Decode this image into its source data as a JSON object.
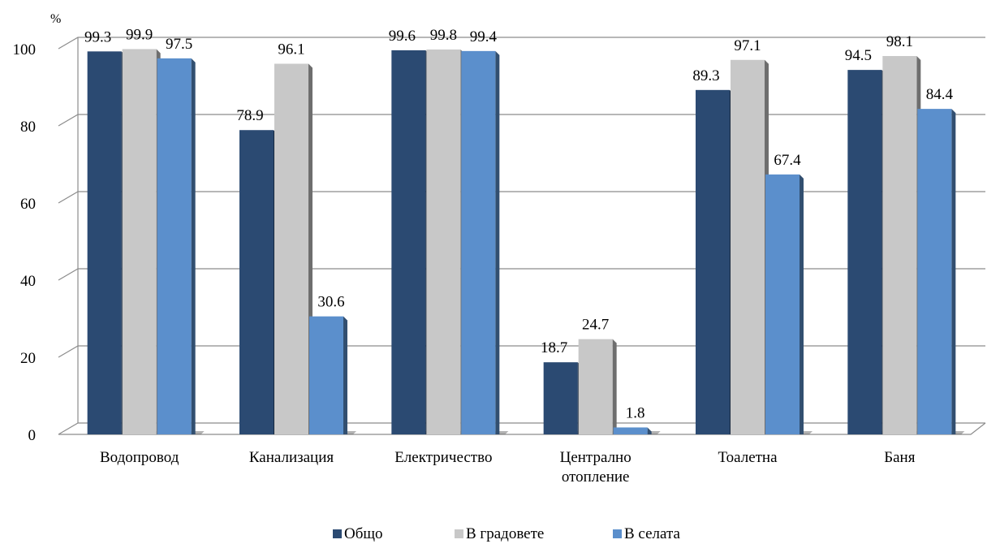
{
  "chart_data": {
    "type": "bar",
    "unit_label": "%",
    "categories": [
      [
        "Водопровод"
      ],
      [
        "Канализация"
      ],
      [
        "Електричество"
      ],
      [
        "Централно",
        "отопление"
      ],
      [
        "Тоалетна"
      ],
      [
        "Баня"
      ]
    ],
    "series": [
      {
        "name": "Общо",
        "color": "#2b4a72",
        "values": [
          99.3,
          78.9,
          99.6,
          18.7,
          89.3,
          94.5
        ]
      },
      {
        "name": "В градовете",
        "color": "#c8c8c8",
        "values": [
          99.9,
          96.1,
          99.8,
          24.7,
          97.1,
          98.1
        ]
      },
      {
        "name": "В селата",
        "color": "#5b8fcc",
        "values": [
          97.5,
          30.6,
          99.4,
          1.8,
          67.4,
          84.4
        ]
      }
    ],
    "ylim": [
      0,
      100
    ],
    "yticks": [
      0,
      20,
      40,
      60,
      80,
      100
    ],
    "grid": true,
    "legend_position": "bottom"
  }
}
